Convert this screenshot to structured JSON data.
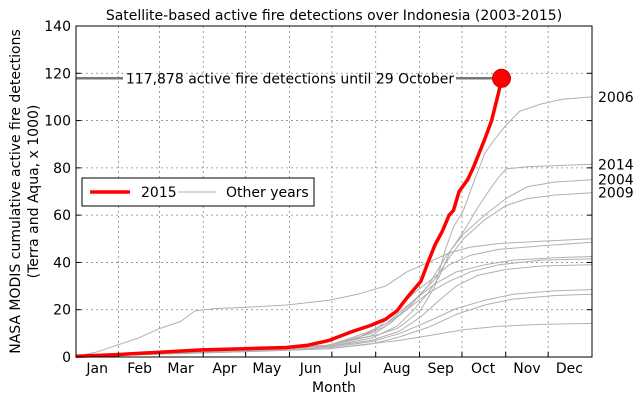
{
  "chart_data": {
    "type": "line",
    "title": "Satellite-based active fire detections over Indonesia (2003-2015)",
    "xlabel": "Month",
    "ylabel_line1": "NASA MODIS cumulative active fire detections",
    "ylabel_line2": "(Terra and Aqua, x 1000)",
    "x_unit": "day of year",
    "xlim": [
      1,
      366
    ],
    "ylim": [
      0,
      140
    ],
    "yticks": [
      0,
      20,
      40,
      60,
      80,
      100,
      120,
      140
    ],
    "month_ticks": [
      {
        "label": "Jan",
        "day": 16
      },
      {
        "label": "Feb",
        "day": 46
      },
      {
        "label": "Mar",
        "day": 75
      },
      {
        "label": "Apr",
        "day": 106
      },
      {
        "label": "May",
        "day": 136
      },
      {
        "label": "Jun",
        "day": 167
      },
      {
        "label": "Jul",
        "day": 197
      },
      {
        "label": "Aug",
        "day": 228
      },
      {
        "label": "Sep",
        "day": 259
      },
      {
        "label": "Oct",
        "day": 289
      },
      {
        "label": "Nov",
        "day": 320
      },
      {
        "label": "Dec",
        "day": 350
      }
    ],
    "grid_x_days": [
      31,
      60,
      91,
      121,
      152,
      182,
      213,
      244,
      274,
      305,
      335
    ],
    "grid_y": [
      20,
      40,
      60,
      80,
      100,
      120
    ],
    "grid": true,
    "legend_placement": "center-left",
    "legend": [
      {
        "label": "2015",
        "style": "thick-red"
      },
      {
        "label": "Other years",
        "style": "thin-gray"
      }
    ],
    "annotation": {
      "text": "117,878 active fire detections until 29 October",
      "day": 302,
      "value": 117.878
    },
    "series": [
      {
        "name": "2015",
        "color": "#ff0000",
        "x": [
          1,
          30,
          60,
          90,
          120,
          150,
          165,
          180,
          195,
          210,
          220,
          228,
          235,
          245,
          250,
          255,
          260,
          265,
          268,
          272,
          278,
          282,
          286,
          290,
          295,
          300,
          302
        ],
        "y": [
          0.3,
          1.0,
          2.0,
          3.0,
          3.5,
          4.0,
          5.0,
          7.0,
          10.5,
          13.5,
          16.0,
          19.5,
          25.0,
          32.0,
          40.0,
          47.5,
          53.0,
          60.0,
          62.0,
          70.0,
          75.0,
          80.0,
          86.0,
          92.0,
          100.0,
          112.0,
          117.878
        ]
      },
      {
        "name": "",
        "color": "#b0b0b0",
        "x": [
          1,
          30,
          60,
          90,
          120,
          150,
          180,
          200,
          215,
          228,
          235,
          245,
          255,
          262,
          268,
          275,
          283,
          290,
          297,
          305,
          315,
          330,
          345,
          366
        ],
        "y": [
          0.3,
          1.0,
          2.0,
          3.0,
          3.5,
          4.0,
          5.0,
          7.5,
          9.5,
          12.0,
          15.0,
          20.0,
          30.0,
          45.0,
          55.0,
          62.0,
          75.0,
          86.0,
          92.0,
          98.0,
          104.0,
          107.0,
          109.0,
          110.0
        ],
        "end_label": "2006"
      },
      {
        "name": "",
        "color": "#b0b0b0",
        "x": [
          1,
          60,
          120,
          180,
          210,
          228,
          240,
          250,
          258,
          266,
          275,
          285,
          295,
          300,
          305,
          320,
          366
        ],
        "y": [
          0.3,
          1.5,
          3.0,
          4.5,
          8.0,
          13.0,
          20.0,
          27.0,
          34.0,
          45.0,
          53.0,
          63.0,
          72.0,
          76.0,
          79.5,
          80.5,
          81.5
        ],
        "end_label": "2014"
      },
      {
        "name": "",
        "color": "#b0b0b0",
        "x": [
          1,
          60,
          120,
          180,
          200,
          220,
          235,
          250,
          262,
          275,
          290,
          305,
          320,
          340,
          366
        ],
        "y": [
          0.3,
          1.5,
          3.0,
          5.0,
          8.0,
          13.0,
          20.0,
          30.0,
          42.0,
          52.0,
          60.0,
          67.0,
          72.0,
          74.0,
          75.0
        ],
        "end_label": "2004"
      },
      {
        "name": "",
        "color": "#b0b0b0",
        "x": [
          1,
          60,
          120,
          175,
          200,
          220,
          240,
          255,
          265,
          275,
          290,
          305,
          320,
          340,
          366
        ],
        "y": [
          0.3,
          1.5,
          3.0,
          4.5,
          8.0,
          14.0,
          24.0,
          33.0,
          42.0,
          50.0,
          58.0,
          64.0,
          67.0,
          68.5,
          69.5
        ],
        "end_label": "2009"
      },
      {
        "name": "",
        "color": "#b0b0b0",
        "x": [
          1,
          15,
          30,
          45,
          60,
          75,
          85,
          100,
          120,
          150,
          180,
          200,
          220,
          235,
          250,
          265,
          280,
          300,
          330,
          366
        ],
        "y": [
          0.3,
          2.0,
          5.0,
          8.0,
          12.0,
          15.0,
          19.5,
          20.5,
          21.0,
          22.0,
          24.0,
          26.5,
          30.0,
          36.0,
          40.0,
          44.0,
          46.5,
          48.0,
          49.0,
          50.0
        ],
        "end_label": ""
      },
      {
        "name": "",
        "color": "#b0b0b0",
        "x": [
          1,
          60,
          120,
          180,
          210,
          225,
          240,
          255,
          265,
          280,
          300,
          330,
          366
        ],
        "y": [
          0.3,
          1.5,
          3.0,
          5.0,
          10.0,
          18.0,
          27.0,
          34.0,
          39.0,
          43.0,
          45.5,
          47.0,
          48.5
        ],
        "end_label": ""
      },
      {
        "name": "",
        "color": "#b0b0b0",
        "x": [
          1,
          60,
          120,
          180,
          210,
          225,
          240,
          255,
          270,
          290,
          310,
          340,
          366
        ],
        "y": [
          0.3,
          1.5,
          3.0,
          5.0,
          9.0,
          15.0,
          24.0,
          31.0,
          36.0,
          39.0,
          41.0,
          42.0,
          42.5
        ],
        "end_label": ""
      },
      {
        "name": "",
        "color": "#b0b0b0",
        "x": [
          1,
          60,
          120,
          180,
          205,
          220,
          235,
          250,
          265,
          280,
          300,
          330,
          366
        ],
        "y": [
          0.3,
          1.5,
          3.0,
          5.0,
          10.0,
          14.0,
          20.0,
          27.0,
          32.0,
          36.0,
          39.0,
          41.0,
          41.5
        ],
        "end_label": ""
      },
      {
        "name": "",
        "color": "#b0b0b0",
        "x": [
          1,
          60,
          120,
          180,
          210,
          230,
          245,
          258,
          270,
          285,
          305,
          330,
          366
        ],
        "y": [
          0.3,
          1.5,
          3.0,
          4.5,
          7.0,
          11.0,
          17.0,
          24.0,
          30.0,
          34.5,
          37.0,
          38.5,
          39.0
        ],
        "end_label": ""
      },
      {
        "name": "",
        "color": "#b0b0b0",
        "x": [
          1,
          60,
          120,
          180,
          210,
          230,
          250,
          270,
          290,
          310,
          340,
          366
        ],
        "y": [
          0.3,
          1.5,
          2.5,
          4.0,
          6.5,
          10.0,
          15.0,
          20.5,
          24.0,
          26.5,
          28.0,
          28.5
        ],
        "end_label": ""
      },
      {
        "name": "",
        "color": "#b0b0b0",
        "x": [
          1,
          60,
          120,
          180,
          210,
          230,
          250,
          270,
          290,
          310,
          340,
          366
        ],
        "y": [
          0.3,
          1.3,
          2.3,
          3.5,
          5.5,
          8.5,
          12.5,
          18.0,
          22.0,
          24.5,
          26.0,
          26.5
        ],
        "end_label": ""
      },
      {
        "name": "",
        "color": "#b0b0b0",
        "x": [
          1,
          60,
          120,
          180,
          200,
          230,
          250,
          275,
          300,
          330,
          366
        ],
        "y": [
          0.3,
          1.2,
          2.2,
          3.5,
          5.0,
          7.0,
          9.0,
          11.5,
          13.0,
          13.8,
          14.2
        ],
        "end_label": ""
      }
    ]
  }
}
